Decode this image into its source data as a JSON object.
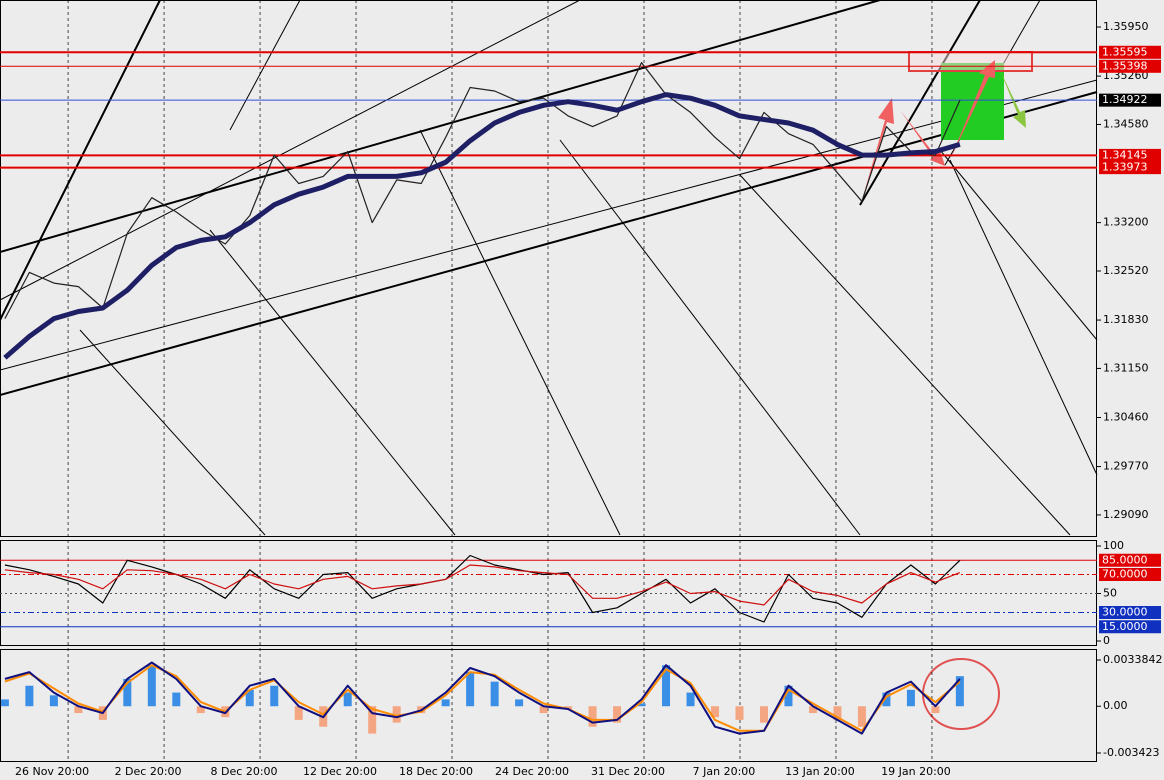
{
  "chart_data": [
    {
      "type": "line",
      "x": [
        0,
        1,
        2,
        3,
        4,
        5,
        6,
        7,
        8,
        9,
        10,
        11,
        12,
        13,
        14,
        15,
        16,
        17,
        18,
        19,
        20,
        21,
        22,
        23,
        24,
        25,
        26,
        27,
        28,
        29,
        30,
        31,
        32,
        33,
        34,
        35,
        36,
        37,
        38,
        39
      ],
      "xlim": [
        -0.2,
        44.6
      ],
      "xticks": [
        {
          "value": 2.58,
          "label": "26 Nov 20:00"
        },
        {
          "value": 6.5,
          "label": "2 Dec 20:00"
        },
        {
          "value": 10.42,
          "label": "8 Dec 20:00"
        },
        {
          "value": 14.34,
          "label": "12 Dec 20:00"
        },
        {
          "value": 18.26,
          "label": "18 Dec 20:00"
        },
        {
          "value": 22.18,
          "label": "24 Dec 20:00"
        },
        {
          "value": 26.1,
          "label": "31 Dec 20:00"
        },
        {
          "value": 30.02,
          "label": "7 Jan 20:00"
        },
        {
          "value": 33.94,
          "label": "13 Jan 20:00"
        },
        {
          "value": 37.86,
          "label": "19 Jan 20:00"
        }
      ],
      "ylim": [
        1.28808,
        1.3633
      ],
      "yticks": [
        {
          "value": 1.3595,
          "label": "1.35950"
        },
        {
          "value": 1.3526,
          "label": "1.35260"
        },
        {
          "value": 1.3458,
          "label": "1.34580"
        },
        {
          "value": 1.332,
          "label": "1.33200"
        },
        {
          "value": 1.3252,
          "label": "1.32520"
        },
        {
          "value": 1.3183,
          "label": "1.31830"
        },
        {
          "value": 1.3115,
          "label": "1.31150"
        },
        {
          "value": 1.3046,
          "label": "1.30460"
        },
        {
          "value": 1.2977,
          "label": "1.29770"
        },
        {
          "value": 1.2909,
          "label": "1.29090"
        }
      ],
      "levels": [
        {
          "value": 1.35595,
          "color": "#e00000",
          "label_fill": "#e00000"
        },
        {
          "value": 1.35398,
          "color": "#e00000",
          "label_fill": "#e00000"
        },
        {
          "value": 1.34922,
          "color": "#3050d0",
          "label_fill": "#000000"
        },
        {
          "value": 1.34145,
          "color": "#e00000",
          "label_fill": "#e00000"
        },
        {
          "value": 1.33973,
          "color": "#e00000",
          "label_fill": "#e00000"
        }
      ],
      "series": [
        {
          "color": "#222222",
          "values": [
            1.3185,
            1.325,
            1.3235,
            1.323,
            1.32,
            1.3305,
            1.3355,
            1.3335,
            1.331,
            1.329,
            1.333,
            1.3415,
            1.3375,
            1.3385,
            1.342,
            1.332,
            1.338,
            1.3375,
            1.344,
            1.351,
            1.3505,
            1.349,
            1.3495,
            1.347,
            1.3455,
            1.347,
            1.3545,
            1.35,
            1.3475,
            1.344,
            1.341,
            1.3475,
            1.3445,
            1.343,
            1.339,
            1.335,
            1.3455,
            1.342,
            1.3415,
            1.3492
          ]
        },
        {
          "color": "#1f1f66",
          "values": [
            1.313,
            1.316,
            1.3185,
            1.3195,
            1.32,
            1.3225,
            1.326,
            1.3285,
            1.3295,
            1.33,
            1.332,
            1.3345,
            1.336,
            1.337,
            1.3385,
            1.3385,
            1.3385,
            1.339,
            1.3405,
            1.3435,
            1.346,
            1.3475,
            1.3485,
            1.349,
            1.3485,
            1.3478,
            1.349,
            1.35,
            1.3495,
            1.3485,
            1.347,
            1.3465,
            1.346,
            1.345,
            1.343,
            1.3415,
            1.3415,
            1.3418,
            1.342,
            1.343
          ]
        }
      ]
    },
    {
      "type": "line",
      "ylim": [
        0,
        100
      ],
      "yticks": [
        100,
        50,
        0
      ],
      "levels": [
        {
          "value": 85,
          "label": "85.0000",
          "color": "#e00000"
        },
        {
          "value": 70,
          "label": "70.0000",
          "color": "#e00000"
        },
        {
          "value": 30,
          "label": "30.0000",
          "color": "#1030c0"
        },
        {
          "value": 15,
          "label": "15.0000",
          "color": "#1030c0"
        }
      ],
      "series": [
        {
          "color": "#000000",
          "values": [
            80,
            75,
            68,
            60,
            40,
            85,
            78,
            70,
            60,
            45,
            75,
            55,
            45,
            70,
            72,
            45,
            55,
            60,
            65,
            90,
            80,
            75,
            70,
            72,
            30,
            35,
            50,
            65,
            40,
            55,
            30,
            20,
            70,
            45,
            40,
            25,
            60,
            80,
            60,
            85
          ]
        },
        {
          "color": "#d01010",
          "values": [
            75,
            72,
            70,
            65,
            55,
            75,
            74,
            70,
            65,
            55,
            70,
            60,
            55,
            65,
            68,
            55,
            58,
            60,
            65,
            80,
            78,
            74,
            72,
            70,
            45,
            45,
            52,
            62,
            50,
            52,
            42,
            38,
            65,
            52,
            48,
            40,
            60,
            72,
            62,
            72
          ]
        }
      ]
    },
    {
      "type": "macd",
      "ylim": [
        -0.003423,
        0.0033842
      ],
      "yticks": [
        0.0033842,
        {
          "value": 0,
          "label": "0.00"
        },
        -0.003423
      ],
      "up_color": "#3a8ee6",
      "down_color": "#f4a582",
      "values": [
        0.0005,
        0.0015,
        0.0008,
        -0.0005,
        -0.001,
        0.002,
        0.003,
        0.001,
        -0.0005,
        -0.0008,
        0.0012,
        0.0015,
        -0.001,
        -0.0015,
        0.001,
        -0.002,
        -0.0012,
        -0.0005,
        0.0005,
        0.0025,
        0.0018,
        0.0005,
        -0.0005,
        -0.0002,
        -0.0015,
        -0.0012,
        0.0002,
        0.003,
        0.001,
        -0.0008,
        -0.001,
        -0.0012,
        0.0015,
        -0.0005,
        -0.001,
        -0.0015,
        0.001,
        0.0012,
        -0.0005,
        0.0022
      ],
      "series": [
        {
          "color": "#ff8c00",
          "values": [
            0.0018,
            0.0024,
            0.0013,
            0.0002,
            -0.0004,
            0.0017,
            0.003,
            0.0022,
            0.0003,
            -0.0004,
            0.0012,
            0.0019,
            0.0003,
            -0.0006,
            0.0012,
            -0.0002,
            -0.0007,
            -0.0004,
            0.0008,
            0.0025,
            0.0023,
            0.0012,
            0.0002,
            -0.0002,
            -0.001,
            -0.001,
            0.0003,
            0.0027,
            0.0017,
            -0.001,
            -0.0018,
            -0.0018,
            0.0012,
            0.0002,
            -0.0008,
            -0.0018,
            0.0007,
            0.0016,
            0.0003,
            0.0018
          ]
        },
        {
          "color": "#101080",
          "values": [
            0.002,
            0.0025,
            0.001,
            0,
            -0.0005,
            0.002,
            0.0032,
            0.002,
            0,
            -0.0005,
            0.0015,
            0.002,
            0,
            -0.0008,
            0.0015,
            -0.0005,
            -0.0008,
            -0.0003,
            0.001,
            0.0028,
            0.0022,
            0.001,
            0,
            -0.0002,
            -0.0012,
            -0.001,
            0.0005,
            0.003,
            0.0015,
            -0.0015,
            -0.002,
            -0.0018,
            0.0015,
            0,
            -0.001,
            -0.002,
            0.001,
            0.0018,
            0,
            0.002
          ]
        }
      ]
    }
  ]
}
